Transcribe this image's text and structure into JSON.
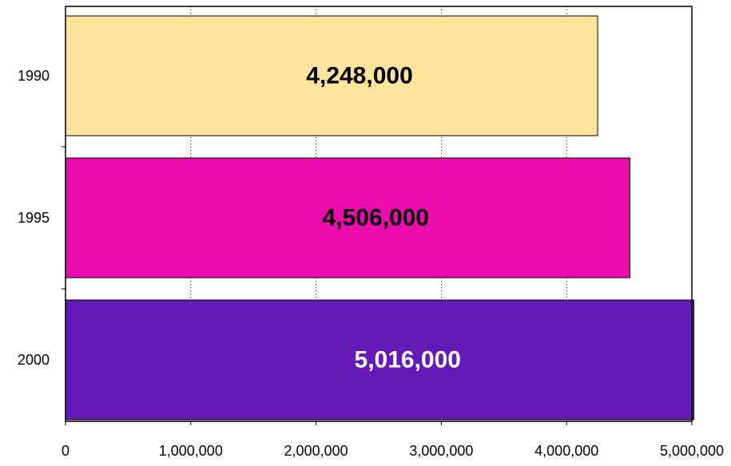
{
  "chart_data": {
    "type": "bar",
    "orientation": "horizontal",
    "categories": [
      "1990",
      "1995",
      "2000"
    ],
    "values": [
      4248000,
      4506000,
      5016000
    ],
    "data_labels": [
      "4,248,000",
      "4,506,000",
      "5,016,000"
    ],
    "bar_colors": [
      "#FDE39B",
      "#EC0CAE",
      "#651AB8"
    ],
    "label_colors": [
      "#000000",
      "#000000",
      "#FFFFFF"
    ],
    "xlim": [
      0,
      5000000
    ],
    "x_ticks": [
      0,
      1000000,
      2000000,
      3000000,
      4000000,
      5000000
    ],
    "x_tick_labels": [
      "0",
      "1,000,000",
      "2,000,000",
      "3,000,000",
      "4,000,000",
      "5,000,000"
    ],
    "grid": "vertical dotted",
    "legend": "none",
    "title": "",
    "xlabel": "",
    "ylabel": ""
  }
}
